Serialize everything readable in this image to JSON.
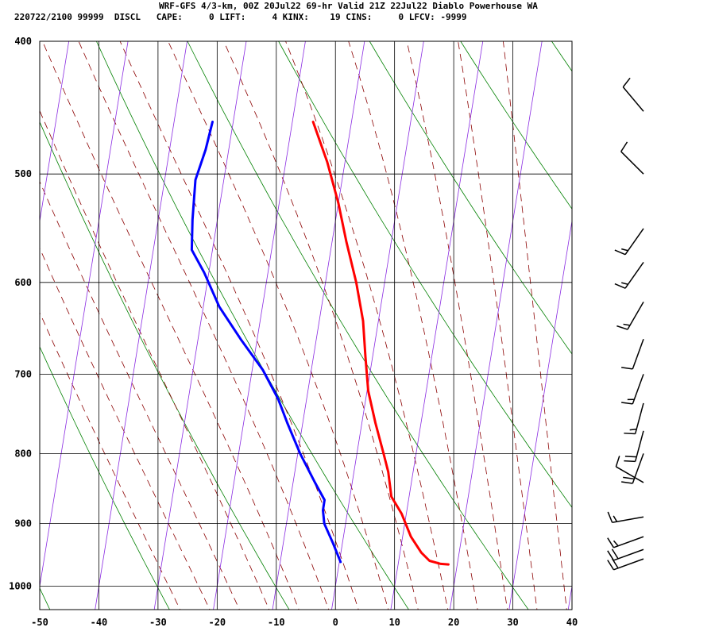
{
  "header": {
    "line1": "WRF-GFS 4/3-km, 00Z 20Jul22 69-hr Valid 21Z 22Jul22 Diablo Powerhouse WA",
    "line2": "220722/2100 99999  DISCL   CAPE:     0 LIFT:     4 KINX:    19 CINS:     0 LFCV: -9999"
  },
  "colors": {
    "temperature": "#ff0000",
    "dewpoint": "#0000ff",
    "isotherm": "#8a2be2",
    "dry_adiabat": "#008000",
    "moist_adiabat": "#8b0000",
    "grid": "#000000",
    "barb": "#000000"
  },
  "chart_data": {
    "type": "line",
    "title": "",
    "xlabel": "",
    "ylabel": "",
    "x_unit": "deg C",
    "y_unit": "hPa",
    "y_scale": "log",
    "xlim": [
      -50,
      40
    ],
    "ylim": [
      1040,
      400
    ],
    "x_ticks": [
      -50,
      -40,
      -30,
      -20,
      -10,
      0,
      10,
      20,
      30,
      40
    ],
    "y_ticks": [
      400,
      500,
      600,
      700,
      800,
      900,
      1000
    ],
    "grid": true,
    "series": [
      {
        "id": "temperature",
        "color": "#ff0000",
        "points": [
          {
            "p": 458,
            "t": -16.5
          },
          {
            "p": 490,
            "t": -13
          },
          {
            "p": 525,
            "t": -10
          },
          {
            "p": 560,
            "t": -7.6
          },
          {
            "p": 600,
            "t": -4.8
          },
          {
            "p": 640,
            "t": -2.6
          },
          {
            "p": 680,
            "t": -1.2
          },
          {
            "p": 720,
            "t": 0.2
          },
          {
            "p": 760,
            "t": 2.3
          },
          {
            "p": 800,
            "t": 4.5
          },
          {
            "p": 825,
            "t": 5.8
          },
          {
            "p": 860,
            "t": 7.0
          },
          {
            "p": 885,
            "t": 9.2
          },
          {
            "p": 920,
            "t": 11.4
          },
          {
            "p": 945,
            "t": 13.6
          },
          {
            "p": 958,
            "t": 15.2
          },
          {
            "p": 963,
            "t": 17.2
          },
          {
            "p": 964,
            "t": 18.5
          }
        ]
      },
      {
        "id": "dewpoint",
        "color": "#0000ff",
        "points": [
          {
            "p": 458,
            "t": -33.5
          },
          {
            "p": 480,
            "t": -33.9
          },
          {
            "p": 505,
            "t": -34.8
          },
          {
            "p": 540,
            "t": -34.2
          },
          {
            "p": 568,
            "t": -33.5
          },
          {
            "p": 590,
            "t": -30.8
          },
          {
            "p": 625,
            "t": -27.3
          },
          {
            "p": 660,
            "t": -22.8
          },
          {
            "p": 695,
            "t": -18.2
          },
          {
            "p": 730,
            "t": -14.8
          },
          {
            "p": 760,
            "t": -12.6
          },
          {
            "p": 800,
            "t": -9.6
          },
          {
            "p": 840,
            "t": -6.3
          },
          {
            "p": 865,
            "t": -4.2
          },
          {
            "p": 880,
            "t": -4.2
          },
          {
            "p": 900,
            "t": -3.6
          },
          {
            "p": 930,
            "t": -1.6
          },
          {
            "p": 960,
            "t": 0.2
          }
        ]
      }
    ],
    "wind_barbs": [
      {
        "p": 450,
        "dir": 320,
        "spd": 10
      },
      {
        "p": 500,
        "dir": 315,
        "spd": 10
      },
      {
        "p": 548,
        "dir": 215,
        "spd": 15
      },
      {
        "p": 580,
        "dir": 215,
        "spd": 15
      },
      {
        "p": 620,
        "dir": 210,
        "spd": 15
      },
      {
        "p": 660,
        "dir": 200,
        "spd": 10
      },
      {
        "p": 700,
        "dir": 200,
        "spd": 15
      },
      {
        "p": 735,
        "dir": 195,
        "spd": 15
      },
      {
        "p": 770,
        "dir": 195,
        "spd": 20
      },
      {
        "p": 800,
        "dir": 200,
        "spd": 20
      },
      {
        "p": 840,
        "dir": 300,
        "spd": 10
      },
      {
        "p": 890,
        "dir": 260,
        "spd": 15
      },
      {
        "p": 920,
        "dir": 250,
        "spd": 15
      },
      {
        "p": 940,
        "dir": 250,
        "spd": 20
      },
      {
        "p": 955,
        "dir": 250,
        "spd": 20
      }
    ]
  }
}
